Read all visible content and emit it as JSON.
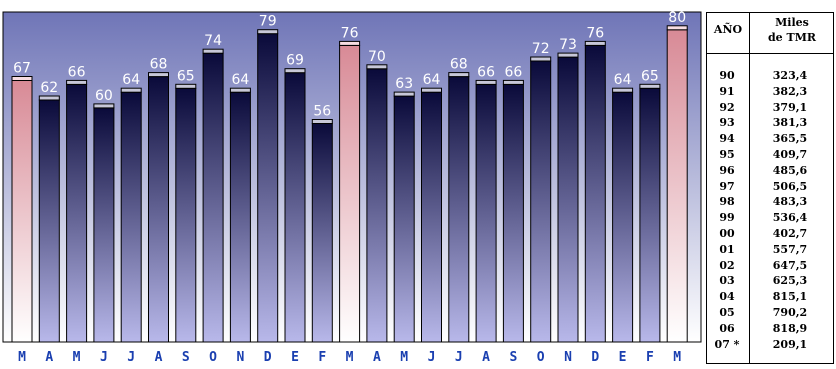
{
  "chart_data": {
    "type": "bar",
    "categories": [
      "M",
      "A",
      "M",
      "J",
      "J",
      "A",
      "S",
      "O",
      "N",
      "D",
      "E",
      "F",
      "M",
      "A",
      "M",
      "J",
      "J",
      "A",
      "S",
      "O",
      "N",
      "D",
      "E",
      "F",
      "M"
    ],
    "values": [
      67,
      62,
      66,
      60,
      64,
      68,
      65,
      74,
      64,
      79,
      69,
      56,
      76,
      70,
      63,
      64,
      68,
      66,
      66,
      72,
      73,
      76,
      64,
      65,
      80
    ],
    "highlighted_indices": [
      0,
      12,
      24
    ],
    "ylim": [
      0,
      82
    ],
    "grid": false,
    "legend": "none",
    "colors": {
      "bar_top": "#0a0a3a",
      "bar_bottom": "#b8b8ea",
      "highlight_top": "#d88a96",
      "highlight_bottom": "#ffffff",
      "bg_top": "#6f75b7",
      "bg_bottom": "#ffffff",
      "value_label": "#ffffff",
      "tick_label": "#1a3fb0"
    }
  },
  "table": {
    "header_year": "AÑO",
    "header_miles_line1": "Miles",
    "header_miles_line2": "de TMR",
    "rows": [
      {
        "year": "90",
        "value": "323,4"
      },
      {
        "year": "91",
        "value": "382,3"
      },
      {
        "year": "92",
        "value": "379,1"
      },
      {
        "year": "93",
        "value": "381,3"
      },
      {
        "year": "94",
        "value": "365,5"
      },
      {
        "year": "95",
        "value": "409,7"
      },
      {
        "year": "96",
        "value": "485,6"
      },
      {
        "year": "97",
        "value": "506,5"
      },
      {
        "year": "98",
        "value": "483,3"
      },
      {
        "year": "99",
        "value": "536,4"
      },
      {
        "year": "00",
        "value": "402,7"
      },
      {
        "year": "01",
        "value": "557,7"
      },
      {
        "year": "02",
        "value": "647,5"
      },
      {
        "year": "03",
        "value": "625,3"
      },
      {
        "year": "04",
        "value": "815,1"
      },
      {
        "year": "05",
        "value": "790,2"
      },
      {
        "year": "06",
        "value": "818,9"
      },
      {
        "year": "07 *",
        "value": "209,1"
      }
    ]
  }
}
